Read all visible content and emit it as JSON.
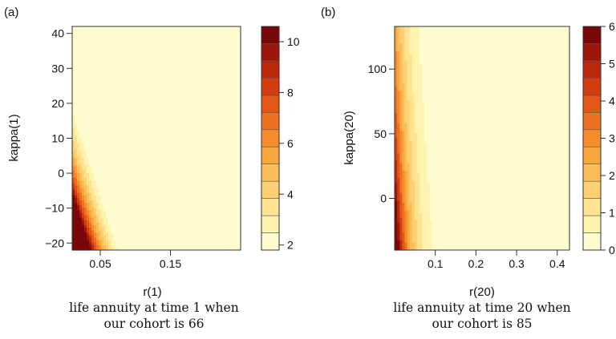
{
  "palette": [
    "#fffdd0",
    "#fff3b0",
    "#ffe391",
    "#fdd074",
    "#fbbd58",
    "#f8a73f",
    "#f48d2e",
    "#ed7121",
    "#e25617",
    "#d23e10",
    "#bb290c",
    "#9e1609",
    "#7a0707"
  ],
  "chart_data": [
    {
      "type": "heatmap",
      "panel_label": "(a)",
      "xlabel": "r(1)",
      "ylabel": "kappa(1)",
      "caption_line1": "life annuity at time 1 when",
      "caption_line2": "our cohort is 66",
      "xlim": [
        0.01,
        0.25
      ],
      "ylim": [
        -22,
        42
      ],
      "x_ticks": [
        0.05,
        0.15
      ],
      "x_tick_labels": [
        "0.05",
        "0.15"
      ],
      "y_ticks": [
        -20,
        -10,
        0,
        10,
        20,
        30,
        40
      ],
      "y_tick_labels": [
        "−20",
        "−10",
        "0",
        "10",
        "20",
        "30",
        "40"
      ],
      "colorbar_range": [
        1.8,
        10.6
      ],
      "colorbar_levels": 13,
      "colorbar_ticks": [
        2,
        4,
        6,
        8,
        10
      ],
      "colorbar_tick_labels": [
        "2",
        "4",
        "6",
        "8",
        "10"
      ],
      "value_model": {
        "base": 10.4,
        "a": 37,
        "b": 0.06,
        "c": 0.0013
      },
      "vmin": 1.8,
      "vmax": 10.6
    },
    {
      "type": "heatmap",
      "panel_label": "(b)",
      "xlabel": "r(20)",
      "ylabel": "kappa(20)",
      "caption_line1": "life annuity at time 20 when",
      "caption_line2": "our cohort is 85",
      "xlim": [
        0.0,
        0.43
      ],
      "ylim": [
        -40,
        133
      ],
      "x_ticks": [
        0.1,
        0.2,
        0.3,
        0.4
      ],
      "x_tick_labels": [
        "0.1",
        "0.2",
        "0.3",
        "0.4"
      ],
      "y_ticks": [
        0,
        50,
        100
      ],
      "y_tick_labels": [
        "0",
        "50",
        "100"
      ],
      "colorbar_range": [
        0,
        6
      ],
      "colorbar_levels": 13,
      "colorbar_ticks": [
        0,
        1,
        2,
        3,
        4,
        5,
        6
      ],
      "colorbar_tick_labels": [
        "0",
        "1",
        "2",
        "3",
        "4",
        "5",
        "6"
      ],
      "value_model": {
        "base": 6.0,
        "a": 30,
        "b": 0.006,
        "c": 0.0
      },
      "vmin": 0.3,
      "vmax": 6.0
    }
  ]
}
